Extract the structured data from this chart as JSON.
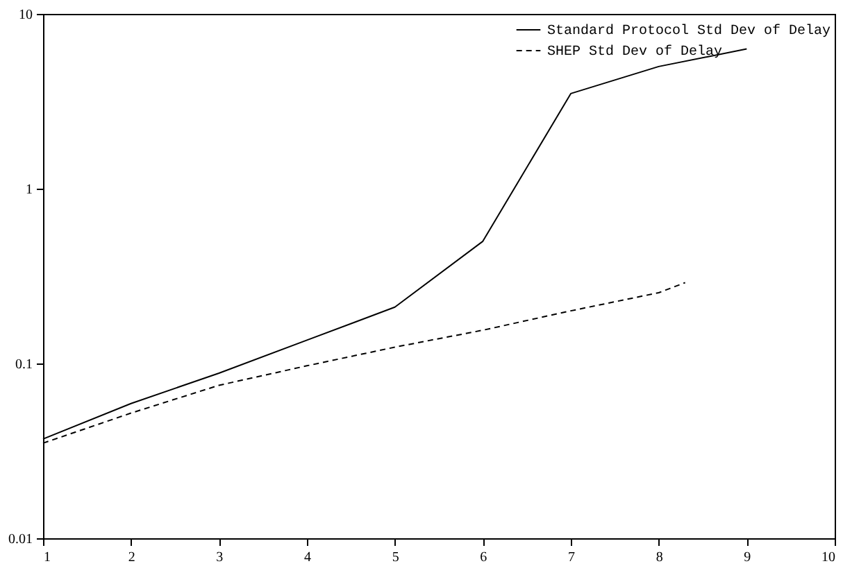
{
  "chart_data": {
    "type": "line",
    "log": "y",
    "xlim": [
      1,
      10
    ],
    "ylim": [
      0.01,
      10
    ],
    "xticks": [
      1,
      2,
      3,
      4,
      5,
      6,
      7,
      8,
      9,
      10
    ],
    "yticks": [
      0.01,
      0.1,
      1,
      10
    ],
    "grid": false,
    "legend": "top right",
    "series": [
      {
        "name": "Standard Protocol Std Dev of Delay",
        "color": "#000000",
        "line_style": "solid",
        "x": [
          1,
          2,
          3,
          4,
          5,
          6,
          7,
          8,
          9
        ],
        "values": [
          0.037,
          0.059,
          0.088,
          0.136,
          0.21,
          0.5,
          3.5,
          5.0,
          6.3
        ]
      },
      {
        "name": "SHEP Std Dev of Delay",
        "color": "#000000",
        "line_style": "dashed",
        "x": [
          1,
          2,
          3,
          4,
          5,
          6,
          7,
          8,
          8.3
        ],
        "values": [
          0.035,
          0.052,
          0.075,
          0.097,
          0.124,
          0.155,
          0.2,
          0.254,
          0.29
        ]
      }
    ]
  }
}
